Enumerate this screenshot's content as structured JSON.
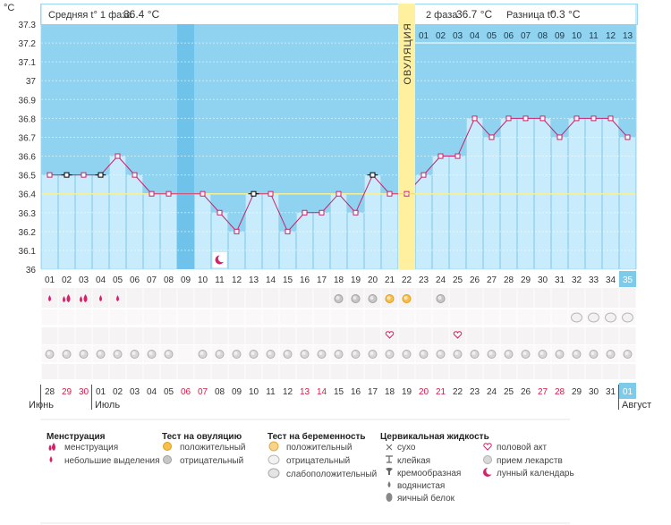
{
  "header": {
    "unit": "°C",
    "phase1_label": "Средняя t° 1 фаза",
    "phase1_value": "36.4 °C",
    "phase2_label": "2 фаза",
    "phase2_value": "36.7 °C",
    "diff_label": "Разница t°",
    "diff_value": "0.3 °C",
    "ovulation_label": "ОВУЛЯЦИЯ"
  },
  "phase2_day_labels": [
    "01",
    "02",
    "03",
    "04",
    "05",
    "06",
    "07",
    "08",
    "09",
    "10",
    "11",
    "12",
    "13"
  ],
  "chart_data": {
    "type": "line",
    "ylim": [
      36,
      37.3
    ],
    "yticks": [
      "36",
      "36.1",
      "36.2",
      "36.3",
      "36.4",
      "36.5",
      "36.6",
      "36.7",
      "36.8",
      "36.9",
      "37",
      "37.1",
      "37.2",
      "37.3"
    ],
    "cycle_days": [
      "01",
      "02",
      "03",
      "04",
      "05",
      "06",
      "07",
      "08",
      "09",
      "10",
      "11",
      "12",
      "13",
      "14",
      "15",
      "16",
      "17",
      "18",
      "19",
      "20",
      "21",
      "22",
      "23",
      "24",
      "25",
      "26",
      "27",
      "28",
      "29",
      "30",
      "31",
      "32",
      "33",
      "34",
      "35"
    ],
    "values": [
      36.5,
      36.5,
      36.5,
      36.5,
      36.6,
      36.5,
      36.4,
      36.4,
      null,
      36.4,
      36.3,
      36.2,
      36.4,
      36.4,
      36.2,
      36.3,
      36.3,
      36.4,
      36.3,
      36.5,
      36.4,
      36.4,
      36.5,
      36.6,
      36.6,
      36.8,
      36.7,
      36.8,
      36.8,
      36.8,
      36.7,
      36.8,
      36.8,
      36.8,
      36.7
    ],
    "black_markers": [
      2,
      4,
      13,
      20
    ],
    "coverline": 36.4,
    "ovulation_day": 22,
    "gap_day": 9,
    "current_day": 35,
    "moon_day": 11
  },
  "calendar": {
    "dates": [
      "28",
      "29",
      "30",
      "01",
      "02",
      "03",
      "04",
      "05",
      "06",
      "07",
      "08",
      "09",
      "10",
      "11",
      "12",
      "13",
      "14",
      "15",
      "16",
      "17",
      "18",
      "19",
      "20",
      "21",
      "22",
      "23",
      "24",
      "25",
      "26",
      "27",
      "28",
      "29",
      "30",
      "31",
      "01"
    ],
    "weekend": [
      1,
      2,
      8,
      9,
      15,
      16,
      22,
      23,
      29,
      30
    ],
    "months": [
      {
        "label": "Июнь",
        "start": 0
      },
      {
        "label": "Июль",
        "start": 3
      },
      {
        "label": "Август",
        "start": 34
      }
    ]
  },
  "symbols": {
    "menstruation_large": [
      2,
      3
    ],
    "menstruation_small": [
      1,
      4,
      5
    ],
    "ovulation_negative": [
      18,
      19,
      20
    ],
    "ovulation_positive": [
      21,
      22
    ],
    "ovulation_negative_late": [
      24
    ],
    "pregnancy_negative": [
      32,
      33,
      34,
      35
    ],
    "intercourse": [
      21,
      25
    ],
    "cervical_dry": [
      1,
      2,
      3,
      4,
      5,
      6,
      7,
      8,
      10,
      11,
      12,
      13,
      14,
      15,
      16,
      17,
      18,
      19,
      20,
      21,
      22,
      23,
      24,
      25,
      26,
      27,
      28,
      29,
      30,
      31,
      32,
      33,
      34,
      35
    ]
  },
  "legend": {
    "menstruation": {
      "title": "Менструация",
      "items": [
        "менструация",
        "небольшие выделения"
      ]
    },
    "ovulation_test": {
      "title": "Тест на овуляцию",
      "items": [
        "положительный",
        "отрицательный"
      ]
    },
    "pregnancy_test": {
      "title": "Тест на беременность",
      "items": [
        "положительный",
        "отрицательный",
        "слабоположительный"
      ]
    },
    "cervical": {
      "title": "Цервикальная жидкость",
      "items": [
        "сухо",
        "клейкая",
        "кремообразная",
        "водянистая",
        "яичный белок"
      ]
    },
    "other": {
      "items": [
        "половой акт",
        "прием лекарств",
        "лунный календарь"
      ]
    }
  },
  "colors": {
    "sky": "#8fd3f0",
    "bar": "#c8ecfb",
    "bar_stroke": "#9dd7f2",
    "line": "#c8206a",
    "ovulation": "#fff0a0",
    "coverline": "#f3ef9a",
    "current": "#7ecbe9"
  }
}
